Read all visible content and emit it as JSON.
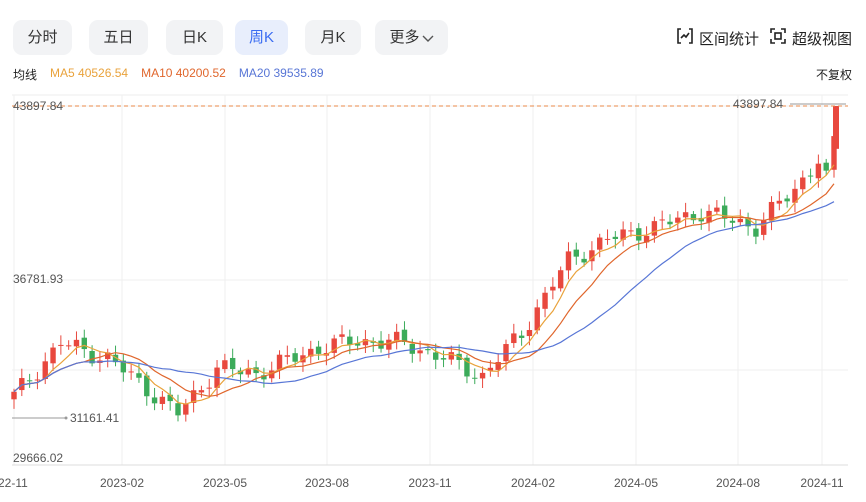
{
  "tabs": [
    {
      "label": "分时",
      "active": false
    },
    {
      "label": "五日",
      "active": false
    },
    {
      "label": "日K",
      "active": false
    },
    {
      "label": "周K",
      "active": true
    },
    {
      "label": "月K",
      "active": false
    },
    {
      "label": "更多",
      "active": false
    }
  ],
  "tools": {
    "range_stats": "区间统计",
    "super_view": "超级视图"
  },
  "legend": {
    "title": "均线",
    "ma5": "MA5 40526.54",
    "ma10": "MA10 40200.52",
    "ma20": "MA20 39535.89"
  },
  "adjust_label": "不复权",
  "colors": {
    "up": "#e8483e",
    "down": "#3cab5a",
    "ma5": "#e9a23b",
    "ma10": "#e0662c",
    "ma20": "#5876d6",
    "max_line": "#e8894a"
  },
  "chart_data": {
    "type": "candlestick",
    "y_labels": [
      "43897.84",
      "36781.93",
      "29666.02"
    ],
    "ylim": [
      29666.02,
      43897.84
    ],
    "max_label": "43897.84",
    "min_label": "31161.41",
    "x_labels": [
      "22-11",
      "2023-02",
      "2023-05",
      "2023-08",
      "2023-11",
      "2024-02",
      "2024-05",
      "2024-08",
      "2024-11"
    ],
    "grid": true
  }
}
